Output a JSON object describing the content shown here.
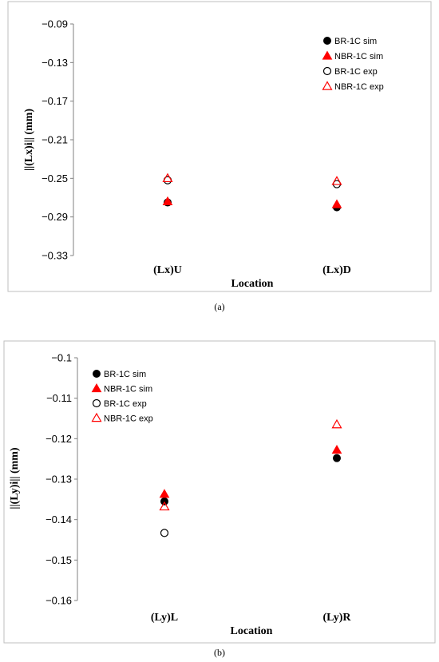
{
  "chart_data": [
    {
      "type": "scatter",
      "caption": "(a)",
      "xlabel": "Location",
      "ylabel": "||(Lx)i||  (mm)",
      "ylim": [
        -0.33,
        -0.09
      ],
      "yticks": [
        -0.09,
        -0.13,
        -0.17,
        -0.21,
        -0.25,
        -0.29,
        -0.33
      ],
      "ytick_labels": [
        "−0.09",
        "−0.13",
        "−0.17",
        "−0.21",
        "−0.25",
        "−0.29",
        "−0.33"
      ],
      "categories": [
        "(Lx)U",
        "(Lx)D"
      ],
      "grid": false,
      "legend_position": "top-right",
      "series": [
        {
          "name": "BR-1C sim",
          "marker": "filled-circle",
          "color": "#000000",
          "values": [
            -0.275,
            -0.28
          ]
        },
        {
          "name": "NBR-1C sim",
          "marker": "filled-triangle",
          "color": "#ff0000",
          "values": [
            -0.274,
            -0.277
          ]
        },
        {
          "name": "BR-1C exp",
          "marker": "open-circle",
          "color": "#000000",
          "values": [
            -0.252,
            -0.256
          ]
        },
        {
          "name": "NBR-1C exp",
          "marker": "open-triangle",
          "color": "#ff0000",
          "values": [
            -0.25,
            -0.253
          ]
        }
      ]
    },
    {
      "type": "scatter",
      "caption": "(b)",
      "xlabel": "Location",
      "ylabel": "||(Ly)i||  (mm)",
      "ylim": [
        -0.16,
        -0.1
      ],
      "yticks": [
        -0.1,
        -0.11,
        -0.12,
        -0.13,
        -0.14,
        -0.15,
        -0.16
      ],
      "ytick_labels": [
        "−0.1",
        "−0.11",
        "−0.12",
        "−0.13",
        "−0.14",
        "−0.15",
        "−0.16"
      ],
      "categories": [
        "(Ly)L",
        "(Ly)R"
      ],
      "grid": false,
      "legend_position": "top-left",
      "series": [
        {
          "name": "BR-1C sim",
          "marker": "filled-circle",
          "color": "#000000",
          "values": [
            -0.1355,
            -0.1248
          ]
        },
        {
          "name": "NBR-1C sim",
          "marker": "filled-triangle",
          "color": "#ff0000",
          "values": [
            -0.1337,
            -0.1228
          ]
        },
        {
          "name": "BR-1C exp",
          "marker": "open-circle",
          "color": "#000000",
          "values": [
            -0.1433,
            null
          ]
        },
        {
          "name": "NBR-1C exp",
          "marker": "open-triangle",
          "color": "#ff0000",
          "values": [
            -0.1368,
            -0.1165
          ]
        }
      ]
    }
  ]
}
